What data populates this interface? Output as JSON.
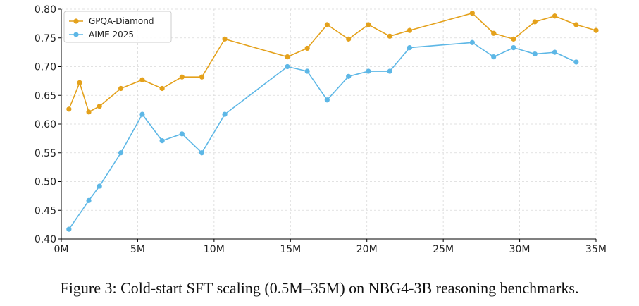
{
  "chart_data": {
    "type": "line",
    "xlim": [
      0,
      35
    ],
    "ylim": [
      0.4,
      0.8
    ],
    "xticks": [
      0,
      5,
      10,
      15,
      20,
      25,
      30,
      35
    ],
    "xtick_labels": [
      "0M",
      "5M",
      "10M",
      "15M",
      "20M",
      "25M",
      "30M",
      "35M"
    ],
    "yticks": [
      0.4,
      0.45,
      0.5,
      0.55,
      0.6,
      0.65,
      0.7,
      0.75,
      0.8
    ],
    "ytick_labels": [
      "0.40",
      "0.45",
      "0.50",
      "0.55",
      "0.60",
      "0.65",
      "0.70",
      "0.75",
      "0.80"
    ],
    "grid": true,
    "legend_position": "top-left",
    "series": [
      {
        "name": "GPQA-Diamond",
        "color": "#E4A11B",
        "x": [
          0.5,
          1.2,
          1.8,
          2.5,
          3.9,
          5.3,
          6.6,
          7.9,
          9.2,
          10.7,
          14.8,
          16.1,
          17.4,
          18.8,
          20.1,
          21.5,
          22.8,
          26.9,
          28.3,
          29.6,
          31.0,
          32.3,
          33.7,
          35.0
        ],
        "y": [
          0.626,
          0.672,
          0.621,
          0.631,
          0.662,
          0.677,
          0.662,
          0.682,
          0.682,
          0.748,
          0.717,
          0.732,
          0.773,
          0.748,
          0.773,
          0.753,
          0.763,
          0.793,
          0.758,
          0.748,
          0.778,
          0.788,
          0.773,
          0.763
        ]
      },
      {
        "name": "AIME 2025",
        "color": "#5DB7E6",
        "x": [
          0.5,
          1.8,
          2.5,
          3.9,
          5.3,
          6.6,
          7.9,
          9.2,
          10.7,
          14.8,
          16.1,
          17.4,
          18.8,
          20.1,
          21.5,
          22.8,
          26.9,
          28.3,
          29.6,
          31.0,
          32.3,
          33.7
        ],
        "y": [
          0.417,
          0.467,
          0.492,
          0.55,
          0.617,
          0.571,
          0.583,
          0.55,
          0.617,
          0.7,
          0.692,
          0.642,
          0.683,
          0.692,
          0.692,
          0.733,
          0.742,
          0.717,
          0.733,
          0.722,
          0.725,
          0.708
        ]
      }
    ]
  },
  "caption": {
    "text": "Figure 3:  Cold-start SFT scaling (0.5M–35M) on NBG4-3B reasoning benchmarks."
  }
}
